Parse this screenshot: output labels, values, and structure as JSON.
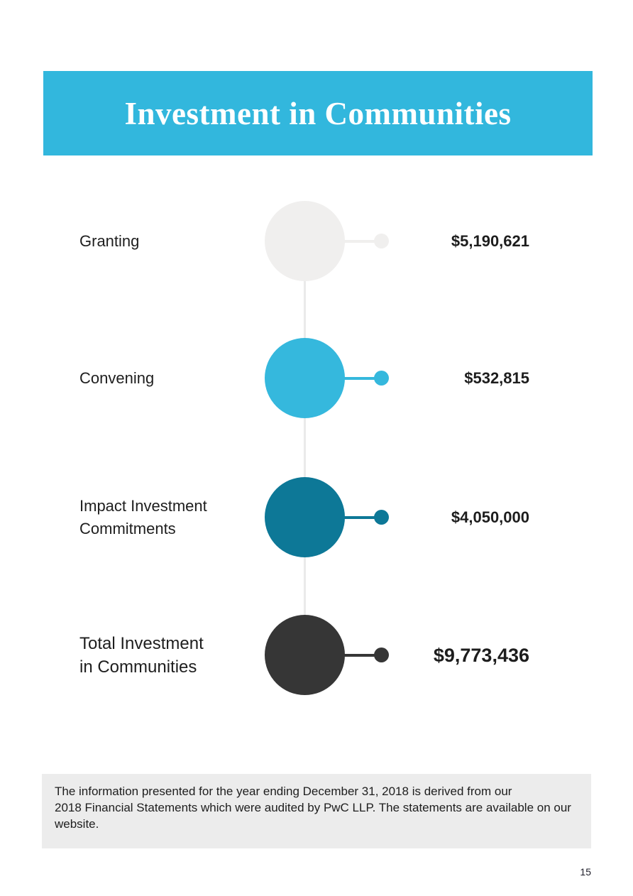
{
  "header": {
    "title": "Investment in Communities",
    "bg_color": "#32b7dd",
    "text_color": "#ffffff"
  },
  "chart_data": {
    "type": "table",
    "title": "Investment in Communities",
    "categories": [
      "Granting",
      "Convening",
      "Impact Investment Commitments",
      "Total Investment in Communities"
    ],
    "values": [
      5190621,
      532815,
      4050000,
      9773436
    ],
    "items": [
      {
        "label": "Granting",
        "amount": "$5,190,621",
        "color": "#f0efee"
      },
      {
        "label": "Convening",
        "amount": "$532,815",
        "color": "#35b8dd"
      },
      {
        "label": "Impact Investment\nCommitments",
        "amount": "$4,050,000",
        "color": "#0d7897"
      },
      {
        "label": "Total Investment\nin Communities",
        "amount": "$9,773,436",
        "color": "#363636"
      }
    ],
    "layout": {
      "spine_color": "#eaeaea",
      "legend": "none",
      "grid": "off"
    }
  },
  "footnote": {
    "text": "The information presented for the year ending December 31, 2018 is derived from our\n2018 Financial Statements which were audited by PwC LLP. The statements are available on our\nwebsite.",
    "bg_color": "#ececec"
  },
  "page": {
    "number": "15"
  }
}
